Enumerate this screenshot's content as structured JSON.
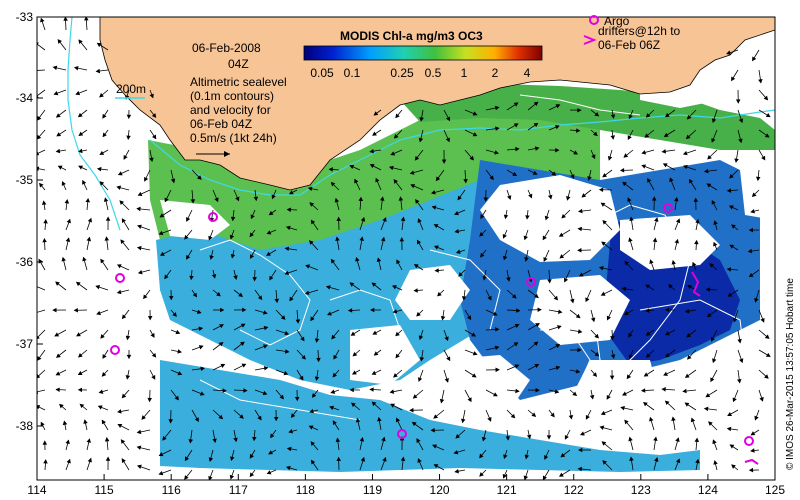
{
  "map": {
    "date": "06-Feb-2008",
    "hour": "04Z",
    "colorbar": {
      "title": "MODIS Chl-a mg/m3 OC3",
      "ticks": [
        "0.05",
        "0.1",
        "0.25",
        "0.5",
        "1",
        "2",
        "4"
      ]
    },
    "isobath_label": "200m",
    "altimetry_note": [
      "Altimetric sealevel",
      "(0.1m contours)",
      "and velocity for",
      "06-Feb 04Z"
    ],
    "velocity_scale": "0.5m/s (1kt 24h)",
    "argo_legend": [
      "Argo"
    ],
    "drifter_legend": [
      "drifters@12h to",
      "06-Feb 06Z"
    ],
    "credit": "© IMOS 26-Mar-2015 13:57:05 Hobart time",
    "x_ticks": [
      "114",
      "115",
      "116",
      "117",
      "118",
      "119",
      "120",
      "121",
      "122",
      "123",
      "124",
      "125"
    ],
    "y_ticks": [
      "-33",
      "-34",
      "-35",
      "-36",
      "-37",
      "-38"
    ],
    "colors": {
      "land": "#f7c496",
      "isobath": "#3ed8e8",
      "argo": "#e000e0",
      "chl_low": "#0a2aa8",
      "chl_mid": "#3aaedc",
      "chl_high": "#4cb84a"
    }
  }
}
